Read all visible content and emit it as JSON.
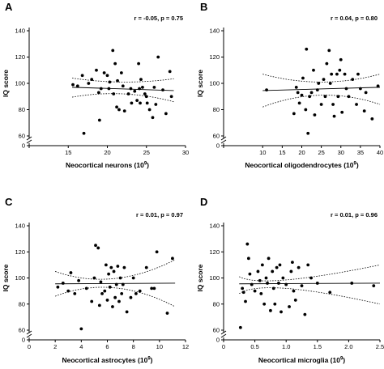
{
  "chart_data": [
    {
      "type": "scatter",
      "panel": "A",
      "stat_text": "r = -0.05, p = 0.75",
      "xlabel": "Neocortical neurons (10",
      "xlabel_sup": "9",
      "xlabel_end": ")",
      "ylabel": "IQ score",
      "xlim": [
        10,
        30
      ],
      "ylim": [
        60,
        140
      ],
      "xticks": [
        10,
        15,
        20,
        25,
        30
      ],
      "xtick_labels": [
        "",
        "15",
        "20",
        "25",
        "30"
      ],
      "yticks": [
        60,
        80,
        100,
        120,
        140
      ],
      "zero_label": "0",
      "fit": {
        "x": [
          15.5,
          28.5
        ],
        "y": [
          97.0,
          94.5
        ]
      },
      "ci_upper": {
        "x": [
          15.5,
          22,
          28.5
        ],
        "y": [
          104,
          101,
          103.5
        ]
      },
      "ci_lower": {
        "x": [
          15.5,
          22,
          28.5
        ],
        "y": [
          89.5,
          92,
          86
        ]
      },
      "points": {
        "x": [
          15.6,
          16.2,
          16.8,
          17.0,
          17.6,
          18.0,
          18.6,
          18.9,
          19.0,
          19.2,
          19.6,
          20.0,
          20.2,
          20.3,
          20.7,
          20.8,
          21.0,
          21.2,
          21.3,
          21.5,
          21.8,
          22.0,
          22.2,
          22.7,
          23.0,
          23.1,
          23.5,
          23.8,
          24.0,
          24.1,
          24.2,
          24.3,
          24.5,
          24.8,
          25.0,
          25.1,
          25.4,
          25.8,
          26.0,
          26.2,
          26.5,
          27.1,
          27.5,
          28.0,
          28.2
        ],
        "y": [
          99,
          98,
          106,
          62,
          100,
          103,
          110,
          93,
          72,
          96,
          108,
          106,
          96,
          101,
          125,
          92,
          115,
          82,
          102,
          80,
          108,
          98,
          79,
          92,
          96,
          85,
          94,
          87,
          115,
          96,
          85,
          103,
          97,
          92,
          90,
          85,
          80,
          74,
          97,
          84,
          120,
          95,
          77,
          109,
          90
        ]
      }
    },
    {
      "type": "scatter",
      "panel": "B",
      "stat_text": "r = 0.04, p = 0.80",
      "xlabel": "Neocortical oligodendrocytes (10",
      "xlabel_sup": "9",
      "xlabel_end": ")",
      "ylabel": "IQ score",
      "xlim": [
        0,
        40
      ],
      "ylim": [
        60,
        140
      ],
      "xticks": [
        0,
        10,
        15,
        20,
        25,
        30,
        35,
        40
      ],
      "xtick_labels": [
        "",
        "10",
        "15",
        "20",
        "25",
        "30",
        "35",
        "40"
      ],
      "yticks": [
        60,
        80,
        100,
        120,
        140
      ],
      "zero_label": "0",
      "fit": {
        "x": [
          10,
          40
        ],
        "y": [
          94.5,
          97.0
        ]
      },
      "ci_upper": {
        "x": [
          10,
          25,
          40
        ],
        "y": [
          107,
          101,
          107
        ]
      },
      "ci_lower": {
        "x": [
          10,
          25,
          40
        ],
        "y": [
          82,
          91,
          84
        ]
      },
      "points": {
        "x": [
          11,
          18,
          18.6,
          19,
          19.4,
          20,
          20.3,
          21,
          21.2,
          21.6,
          22,
          22.5,
          23,
          23.3,
          24,
          24.3,
          25,
          25.6,
          26,
          26.4,
          27,
          27.3,
          27.6,
          28,
          28.3,
          29,
          29.3,
          29.7,
          30,
          30.3,
          31,
          31.4,
          32,
          33,
          34,
          34.4,
          35,
          36,
          36.4,
          38,
          39.5
        ],
        "y": [
          95,
          77,
          97,
          93,
          85,
          91,
          104,
          80,
          126,
          62,
          90,
          93,
          110,
          76,
          95,
          100,
          84,
          103,
          90,
          115,
          125,
          100,
          107,
          84,
          75,
          107,
          90,
          110,
          118,
          78,
          107,
          96,
          90,
          103,
          84,
          107,
          96,
          79,
          93,
          73,
          98
        ]
      }
    },
    {
      "type": "scatter",
      "panel": "C",
      "stat_text": "r = 0.01, p = 0.97",
      "xlabel": "Neocortical astrocytes (10",
      "xlabel_sup": "9",
      "xlabel_end": ")",
      "ylabel": "IQ score",
      "xlim": [
        0,
        12
      ],
      "ylim": [
        60,
        140
      ],
      "xticks": [
        0,
        2,
        4,
        6,
        8,
        10,
        12
      ],
      "xtick_labels": [
        "0",
        "2",
        "4",
        "6",
        "8",
        "10",
        "12"
      ],
      "yticks": [
        60,
        80,
        100,
        120,
        140
      ],
      "zero_label": "0",
      "fit": {
        "x": [
          2,
          11.2
        ],
        "y": [
          95.5,
          96.0
        ]
      },
      "ci_upper": {
        "x": [
          2,
          6.5,
          11.2
        ],
        "y": [
          105,
          99.5,
          114
        ]
      },
      "ci_lower": {
        "x": [
          2,
          6.5,
          11.2
        ],
        "y": [
          86,
          92.5,
          78
        ]
      },
      "points": {
        "x": [
          2.2,
          2.6,
          3.0,
          3.2,
          3.5,
          3.8,
          4.0,
          4.4,
          4.8,
          5.0,
          5.1,
          5.3,
          5.4,
          5.5,
          5.6,
          5.8,
          5.9,
          6.0,
          6.1,
          6.2,
          6.3,
          6.4,
          6.5,
          6.6,
          6.7,
          6.8,
          6.9,
          7.0,
          7.1,
          7.2,
          7.3,
          7.5,
          7.8,
          8.0,
          8.2,
          8.5,
          9.0,
          9.4,
          9.6,
          9.8,
          10.6,
          11.0
        ],
        "y": [
          93,
          96,
          90,
          104,
          88,
          98,
          61,
          92,
          82,
          100,
          125,
          123,
          79,
          97,
          88,
          90,
          110,
          83,
          103,
          93,
          108,
          78,
          105,
          85,
          95,
          109,
          82,
          100,
          88,
          95,
          108,
          74,
          85,
          100,
          88,
          90,
          108,
          92,
          92,
          120,
          73,
          115
        ]
      }
    },
    {
      "type": "scatter",
      "panel": "D",
      "stat_text": "r = 0.01, p = 0.96",
      "xlabel": "Neocortical microglia (10",
      "xlabel_sup": "9",
      "xlabel_end": ")",
      "ylabel": "IQ score",
      "xlim": [
        0,
        2.5
      ],
      "ylim": [
        60,
        140
      ],
      "xticks": [
        0,
        0.5,
        1.0,
        1.5,
        2.0,
        2.5
      ],
      "xtick_labels": [
        "0",
        "0.5",
        "1.0",
        "1.5",
        "2.0",
        "2.5"
      ],
      "yticks": [
        60,
        80,
        100,
        120,
        140
      ],
      "zero_label": "0",
      "fit": {
        "x": [
          0.25,
          2.5
        ],
        "y": [
          95.5,
          96.0
        ]
      },
      "ci_upper": {
        "x": [
          0.25,
          1.0,
          2.5
        ],
        "y": [
          101,
          98.5,
          110
        ]
      },
      "ci_lower": {
        "x": [
          0.25,
          1.0,
          2.5
        ],
        "y": [
          88,
          92,
          80
        ]
      },
      "points": {
        "x": [
          0.27,
          0.3,
          0.32,
          0.35,
          0.38,
          0.4,
          0.42,
          0.45,
          0.5,
          0.55,
          0.58,
          0.6,
          0.62,
          0.65,
          0.68,
          0.7,
          0.72,
          0.75,
          0.78,
          0.8,
          0.82,
          0.85,
          0.88,
          0.9,
          0.92,
          0.95,
          1.0,
          1.05,
          1.08,
          1.1,
          1.12,
          1.15,
          1.2,
          1.25,
          1.3,
          1.35,
          1.4,
          1.5,
          1.7,
          2.05,
          2.4
        ],
        "y": [
          62,
          92,
          89,
          82,
          126,
          115,
          103,
          95,
          90,
          105,
          98,
          88,
          110,
          80,
          100,
          96,
          115,
          75,
          105,
          92,
          80,
          108,
          96,
          110,
          74,
          100,
          95,
          78,
          105,
          112,
          90,
          83,
          108,
          94,
          72,
          110,
          100,
          96,
          89,
          96,
          94
        ]
      }
    }
  ]
}
